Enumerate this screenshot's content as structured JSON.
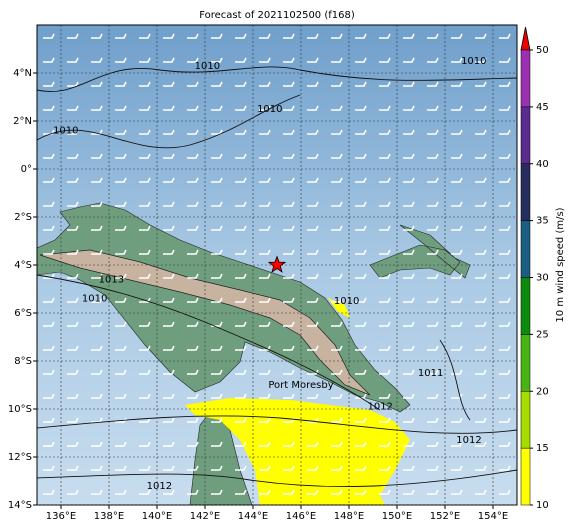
{
  "title": "Forecast of 2021102500 (f168)",
  "map": {
    "xlim": [
      135,
      155
    ],
    "ylim": [
      -14,
      6
    ],
    "xticks": [
      {
        "value": 136,
        "label": "136°E"
      },
      {
        "value": 138,
        "label": "138°E"
      },
      {
        "value": 140,
        "label": "140°E"
      },
      {
        "value": 142,
        "label": "142°E"
      },
      {
        "value": 144,
        "label": "144°E"
      },
      {
        "value": 146,
        "label": "146°E"
      },
      {
        "value": 148,
        "label": "148°E"
      },
      {
        "value": 150,
        "label": "150°E"
      },
      {
        "value": 152,
        "label": "152°E"
      },
      {
        "value": 154,
        "label": "154°E"
      }
    ],
    "yticks": [
      {
        "value": 4,
        "label": "4°N"
      },
      {
        "value": 2,
        "label": "2°N"
      },
      {
        "value": 0,
        "label": "0°"
      },
      {
        "value": -2,
        "label": "2°S"
      },
      {
        "value": -4,
        "label": "4°S"
      },
      {
        "value": -6,
        "label": "6°S"
      },
      {
        "value": -8,
        "label": "8°S"
      },
      {
        "value": -10,
        "label": "10°S"
      },
      {
        "value": -12,
        "label": "12°S"
      },
      {
        "value": -14,
        "label": "14°S"
      }
    ],
    "grid": true,
    "contour_labels": [
      {
        "text": "1010",
        "lon": 142.1,
        "lat": 4.3
      },
      {
        "text": "1010",
        "lon": 144.7,
        "lat": 2.5
      },
      {
        "text": "1010",
        "lon": 153.2,
        "lat": 4.5
      },
      {
        "text": "1010",
        "lon": 136.2,
        "lat": 1.6
      },
      {
        "text": "1010",
        "lon": 137.4,
        "lat": -5.4
      },
      {
        "text": "1013",
        "lon": 138.1,
        "lat": -4.6
      },
      {
        "text": "1010",
        "lon": 147.9,
        "lat": -5.5
      },
      {
        "text": "1011",
        "lon": 151.4,
        "lat": -8.5
      },
      {
        "text": "1012",
        "lon": 153.0,
        "lat": -11.3
      },
      {
        "text": "1012",
        "lon": 140.1,
        "lat": -13.2
      },
      {
        "text": "1012",
        "lon": 149.3,
        "lat": -9.9
      }
    ],
    "marker": {
      "lon": 145.0,
      "lat": -4.0,
      "color": "#ff0000"
    },
    "place": {
      "text": "Port Moresby",
      "lon": 146.0,
      "lat": -9.0
    }
  },
  "colorbar": {
    "label": "10 m wind speed (m/s)",
    "lim": [
      10,
      50
    ],
    "ticks": [
      10,
      15,
      20,
      25,
      30,
      35,
      40,
      45,
      50
    ],
    "colors": [
      "#ffff00",
      "#a6dc00",
      "#48b414",
      "#0e8a0e",
      "#1b5e82",
      "#252e5e",
      "#5b2c8e",
      "#9b30b0"
    ],
    "extend_color": "#ee0000"
  }
}
